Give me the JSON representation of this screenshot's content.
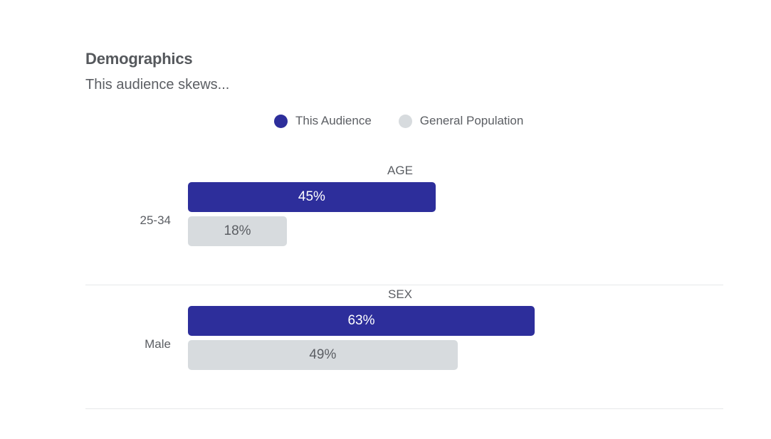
{
  "title": "Demographics",
  "subtitle": "This audience skews...",
  "legend": [
    {
      "label": "This Audience",
      "color": "#2d2e9b"
    },
    {
      "label": "General Population",
      "color": "#d7dbde"
    }
  ],
  "chart_data": {
    "type": "bar",
    "orientation": "horizontal",
    "series_names": [
      "This Audience",
      "General Population"
    ],
    "groups": [
      {
        "title": "AGE",
        "category": "25-34",
        "bars": [
          {
            "series": "This Audience",
            "value": 45,
            "label": "45%"
          },
          {
            "series": "General Population",
            "value": 18,
            "label": "18%"
          }
        ]
      },
      {
        "title": "SEX",
        "category": "Male",
        "bars": [
          {
            "series": "This Audience",
            "value": 63,
            "label": "63%"
          },
          {
            "series": "General Population",
            "value": 49,
            "label": "49%"
          }
        ]
      }
    ],
    "xlim": [
      0,
      100
    ],
    "legend_position": "top-center",
    "grid": false
  }
}
